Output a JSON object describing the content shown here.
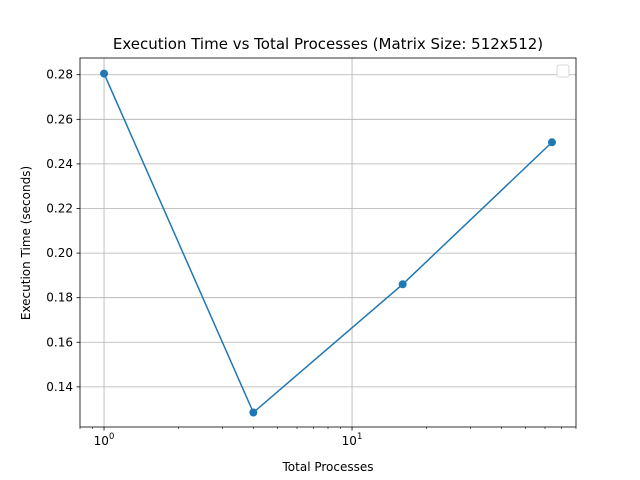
{
  "chart_data": {
    "type": "line",
    "title": "Execution Time vs Total Processes (Matrix Size: 512x512)",
    "xlabel": "Total Processes",
    "ylabel": "Execution Time (seconds)",
    "xscale": "log",
    "xlim": [
      0.8,
      80
    ],
    "ylim": [
      0.122,
      0.2875
    ],
    "x_ticks": [
      {
        "value": 1,
        "base": "10",
        "exp": "0"
      },
      {
        "value": 10,
        "base": "10",
        "exp": "1"
      }
    ],
    "y_ticks": [
      0.14,
      0.16,
      0.18,
      0.2,
      0.22,
      0.24,
      0.26,
      0.28
    ],
    "y_tick_labels": [
      "0.14",
      "0.16",
      "0.18",
      "0.20",
      "0.22",
      "0.24",
      "0.26",
      "0.28"
    ],
    "grid": true,
    "legend": {
      "location": "upper right",
      "entries": []
    },
    "series": [
      {
        "x": [
          1,
          4,
          16,
          64
        ],
        "y": [
          0.2805,
          0.1285,
          0.186,
          0.2497
        ],
        "color": "#1f77b4",
        "marker": "circle"
      }
    ]
  }
}
